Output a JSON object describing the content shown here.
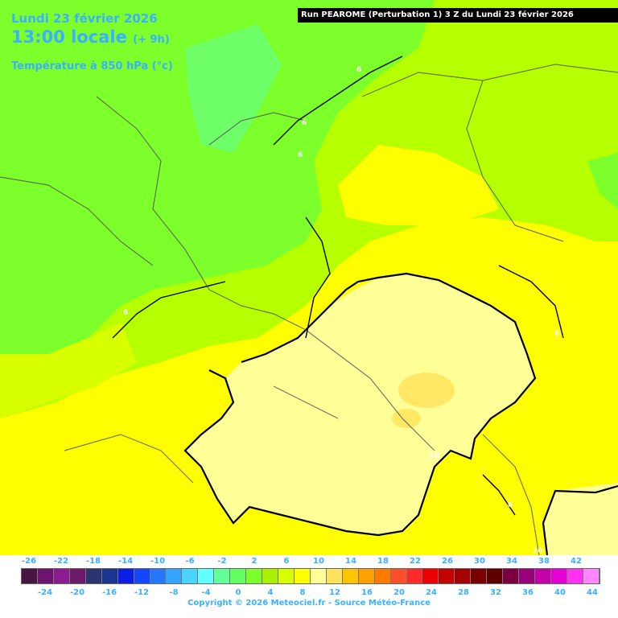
{
  "header": {
    "date": "Lundi 23 février 2026",
    "time": "13:00 locale",
    "offset": "(+ 9h)",
    "variable": "Température à 850 hPa (°c)",
    "run": "Run PEAROME (Perturbation 1) 3 Z du Lundi 23 février 2026"
  },
  "isotherm_labels": [
    "6",
    "6",
    "6",
    "6",
    "6",
    "6",
    "10",
    "6",
    "10"
  ],
  "legend": {
    "top_labels": [
      "-26",
      "-22",
      "-18",
      "-14",
      "-10",
      "-6",
      "-2",
      "2",
      "6",
      "10",
      "14",
      "18",
      "22",
      "26",
      "30",
      "34",
      "38",
      "42"
    ],
    "bottom_labels": [
      "-24",
      "-20",
      "-16",
      "-12",
      "-8",
      "-4",
      "0",
      "4",
      "8",
      "12",
      "16",
      "20",
      "24",
      "28",
      "32",
      "36",
      "40",
      "44"
    ],
    "colors": [
      "#4a1440",
      "#6e1470",
      "#8c1a90",
      "#6a1a66",
      "#2a3470",
      "#1a3490",
      "#0a1ee6",
      "#1446ff",
      "#2478ff",
      "#34a4ff",
      "#48d4ff",
      "#62ffff",
      "#62ff9a",
      "#62ff62",
      "#7cff2a",
      "#a6f000",
      "#d8ff00",
      "#fffe00",
      "#ffff98",
      "#ffe25a",
      "#ffc400",
      "#ffa000",
      "#ff7b00",
      "#ff4e2a",
      "#ff2a2a",
      "#ee0000",
      "#c40000",
      "#a60000",
      "#7a0000",
      "#5e0000",
      "#7a0040",
      "#96007a",
      "#c400a8",
      "#e600d6",
      "#ff32f0",
      "#ff86ff"
    ]
  },
  "copyright": "Copyright © 2026 Meteociel.fr - Source Météo-France"
}
